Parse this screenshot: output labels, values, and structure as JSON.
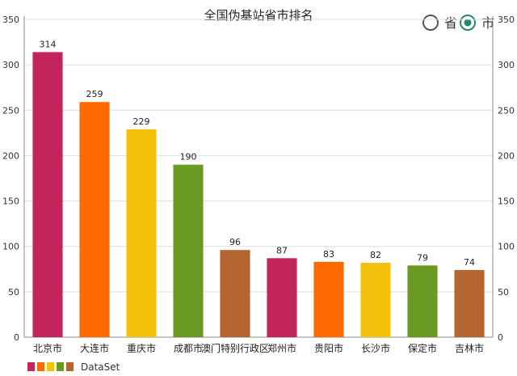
{
  "radio": {
    "options": [
      {
        "label": "省",
        "selected": false
      },
      {
        "label": "市",
        "selected": true
      }
    ],
    "accent": "#1f8a70"
  },
  "chart_data": {
    "type": "bar",
    "title": "全国伪基站省市排名",
    "categories": [
      "北京市",
      "大连市",
      "重庆市",
      "成都市",
      "澳门特别行政区",
      "郑州市",
      "贵阳市",
      "长沙市",
      "保定市",
      "吉林市"
    ],
    "series": [
      {
        "name": "DataSet",
        "values": [
          314,
          259,
          229,
          190,
          96,
          87,
          83,
          82,
          79,
          74
        ]
      }
    ],
    "colors": [
      "#c2255c",
      "#ff6a00",
      "#f4c20d",
      "#6b9a22",
      "#b5652f"
    ],
    "ylim": [
      0,
      350
    ],
    "yticks": [
      0,
      50,
      100,
      150,
      200,
      250,
      300,
      350
    ],
    "grid": true,
    "legend": "bottom-left",
    "xlabel": "",
    "ylabel": ""
  }
}
